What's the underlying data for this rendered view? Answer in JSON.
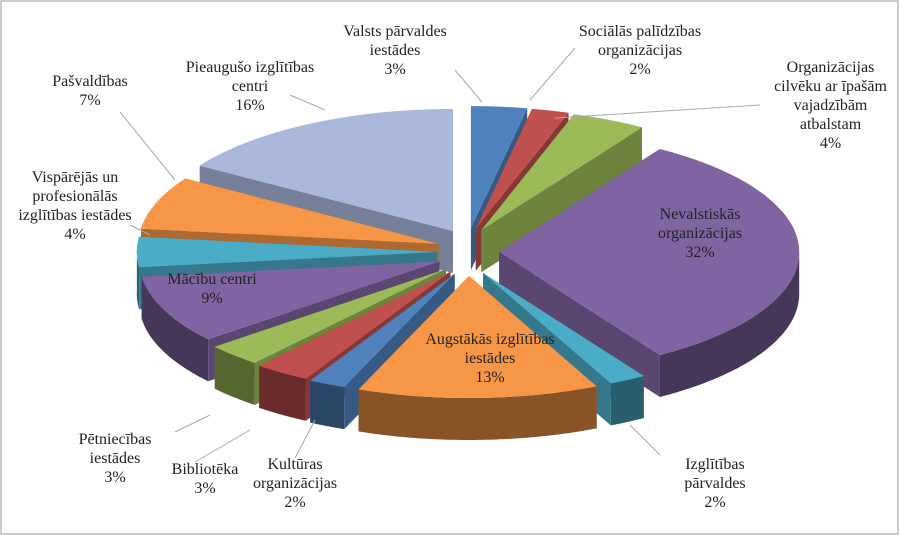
{
  "chart_data": {
    "type": "pie3d",
    "categories": [
      "Valsts pārvaldes iestādes",
      "Sociālās palīdzības organizācijas",
      "Organizācijas cilvēku ar īpašām vajadzībām atbalstam",
      "Nevalstiskās organizācijas",
      "Izglītības pārvaldes",
      "Augstākās izglītības iestādes",
      "Kultūras organizācijas",
      "Bibliotēka",
      "Pētniecības iestādes",
      "Mācību centri",
      "Vispārējās un profesionālās izglītības iestādes",
      "Pašvaldības",
      "Pieaugušo izglītības centri"
    ],
    "values": [
      3,
      2,
      4,
      32,
      2,
      13,
      2,
      3,
      3,
      9,
      4,
      7,
      16
    ],
    "value_labels": [
      "3%",
      "2%",
      "4%",
      "32%",
      "2%",
      "13%",
      "2%",
      "3%",
      "3%",
      "9%",
      "4%",
      "7%",
      "16%"
    ],
    "colors": [
      "#4F81BD",
      "#C0504D",
      "#9BBB59",
      "#8064A2",
      "#4BACC6",
      "#F79646",
      "#4F81BD",
      "#C0504D",
      "#9BBB59",
      "#8064A2",
      "#4BACC6",
      "#F79646",
      "#A9B8DA"
    ]
  }
}
